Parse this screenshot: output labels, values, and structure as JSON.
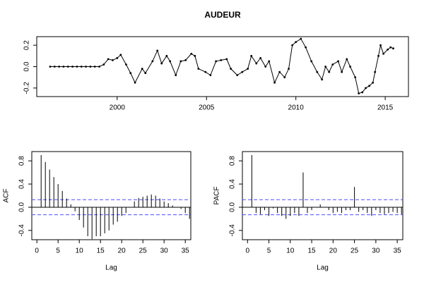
{
  "chart_data": [
    {
      "type": "line",
      "title": "AUDEUR",
      "color": "#000000",
      "x": [
        1996.25,
        1996.5,
        1996.75,
        1997.0,
        1997.25,
        1997.5,
        1997.75,
        1998.0,
        1998.25,
        1998.5,
        1998.75,
        1999.0,
        1999.25,
        1999.5,
        1999.75,
        2000.0,
        2000.2,
        2000.5,
        2000.75,
        2001.0,
        2001.4,
        2001.58,
        2001.98,
        2002.25,
        2002.49,
        2002.77,
        2002.96,
        2003.28,
        2003.56,
        2003.83,
        2004.15,
        2004.35,
        2004.55,
        2004.94,
        2005.22,
        2005.53,
        2005.81,
        2006.13,
        2006.36,
        2006.72,
        2007.0,
        2007.31,
        2007.51,
        2007.79,
        2008.02,
        2008.3,
        2008.5,
        2008.81,
        2009.09,
        2009.37,
        2009.6,
        2009.8,
        2010.0,
        2010.28,
        2010.55,
        2010.87,
        2011.19,
        2011.46,
        2011.66,
        2011.86,
        2012.06,
        2012.37,
        2012.57,
        2012.85,
        2013.04,
        2013.32,
        2013.52,
        2013.72,
        2013.91,
        2014.11,
        2014.31,
        2014.43,
        2014.62,
        2014.74,
        2014.9,
        2015.14,
        2015.3,
        2015.45
      ],
      "values": [
        0,
        0,
        0,
        0,
        0,
        0,
        0,
        0,
        0,
        0,
        0,
        0,
        0.02,
        0.07,
        0.06,
        0.08,
        0.11,
        0.02,
        -0.06,
        -0.15,
        -0.02,
        -0.06,
        0.05,
        0.15,
        0.03,
        0.1,
        0.05,
        -0.08,
        0.05,
        0.06,
        0.12,
        0.1,
        -0.02,
        -0.05,
        -0.08,
        0.05,
        0.06,
        0.07,
        -0.02,
        -0.08,
        -0.05,
        -0.02,
        0.1,
        0.03,
        0.08,
        0,
        0.05,
        -0.15,
        -0.05,
        -0.1,
        -0.02,
        0.2,
        0.23,
        0.26,
        0.18,
        0.05,
        -0.05,
        -0.12,
        0,
        -0.05,
        0.02,
        0.05,
        -0.05,
        0.07,
        0,
        -0.1,
        -0.25,
        -0.24,
        -0.2,
        -0.18,
        -0.15,
        -0.05,
        0.1,
        0.2,
        0.12,
        0.16,
        0.18,
        0.17
      ],
      "xlim": [
        1995.5,
        2016.3
      ],
      "ylim": [
        -0.28,
        0.28
      ],
      "xticks": [
        2000,
        2005,
        2010,
        2015
      ],
      "yticks": [
        -0.2,
        {
          "value": 0,
          "label": "0.0"
        },
        0.2
      ]
    },
    {
      "type": "bar",
      "x_label": "Lag",
      "y_label": "ACF",
      "color": "#000000",
      "bound_color": "#4d4dff",
      "x": [
        1,
        2,
        3,
        4,
        5,
        6,
        7,
        8,
        9,
        10,
        11,
        12,
        13,
        14,
        15,
        16,
        17,
        18,
        19,
        20,
        21,
        22,
        23,
        24,
        25,
        26,
        27,
        28,
        29,
        30,
        31,
        32,
        33,
        34,
        35,
        36
      ],
      "values": [
        0.9,
        0.78,
        0.65,
        0.52,
        0.4,
        0.28,
        0.15,
        0.05,
        -0.07,
        -0.22,
        -0.35,
        -0.5,
        -0.55,
        -0.5,
        -0.5,
        -0.45,
        -0.4,
        -0.3,
        -0.25,
        -0.15,
        -0.1,
        0,
        0.1,
        0.16,
        0.18,
        0.2,
        0.22,
        0.2,
        0.15,
        0.1,
        0.07,
        0.03,
        0,
        -0.03,
        -0.1,
        -0.2
      ],
      "bounds": [
        -0.13,
        0.13
      ],
      "xlim": [
        -1.2,
        36.3
      ],
      "ylim": [
        -0.56,
        0.96
      ],
      "xticks": [
        0,
        5,
        10,
        15,
        20,
        25,
        30,
        35
      ],
      "yticks": [
        -0.4,
        {
          "value": 0,
          "label": "0.0"
        },
        0.4,
        0.8
      ]
    },
    {
      "type": "bar",
      "x_label": "Lag",
      "y_label": "PACF",
      "color": "#000000",
      "bound_color": "#4d4dff",
      "x": [
        1,
        2,
        3,
        4,
        5,
        6,
        7,
        8,
        9,
        10,
        11,
        12,
        13,
        14,
        15,
        16,
        17,
        18,
        19,
        20,
        21,
        22,
        23,
        24,
        25,
        26,
        27,
        28,
        29,
        30,
        31,
        32,
        33,
        34,
        35,
        36
      ],
      "values": [
        0.9,
        -0.1,
        -0.12,
        -0.05,
        -0.15,
        -0.02,
        -0.1,
        -0.15,
        -0.2,
        -0.15,
        -0.1,
        -0.15,
        0.6,
        -0.1,
        -0.05,
        0,
        0.05,
        0,
        -0.05,
        -0.1,
        -0.08,
        -0.1,
        -0.05,
        -0.05,
        0.35,
        -0.08,
        -0.05,
        -0.1,
        -0.15,
        -0.05,
        -0.1,
        -0.12,
        -0.1,
        -0.08,
        -0.1,
        -0.12
      ],
      "bounds": [
        -0.13,
        0.13
      ],
      "xlim": [
        -1.2,
        36.3
      ],
      "ylim": [
        -0.56,
        0.96
      ],
      "xticks": [
        0,
        5,
        10,
        15,
        20,
        25,
        30,
        35
      ],
      "yticks": [
        -0.4,
        {
          "value": 0,
          "label": "0.0"
        },
        0.4,
        0.8
      ]
    }
  ]
}
